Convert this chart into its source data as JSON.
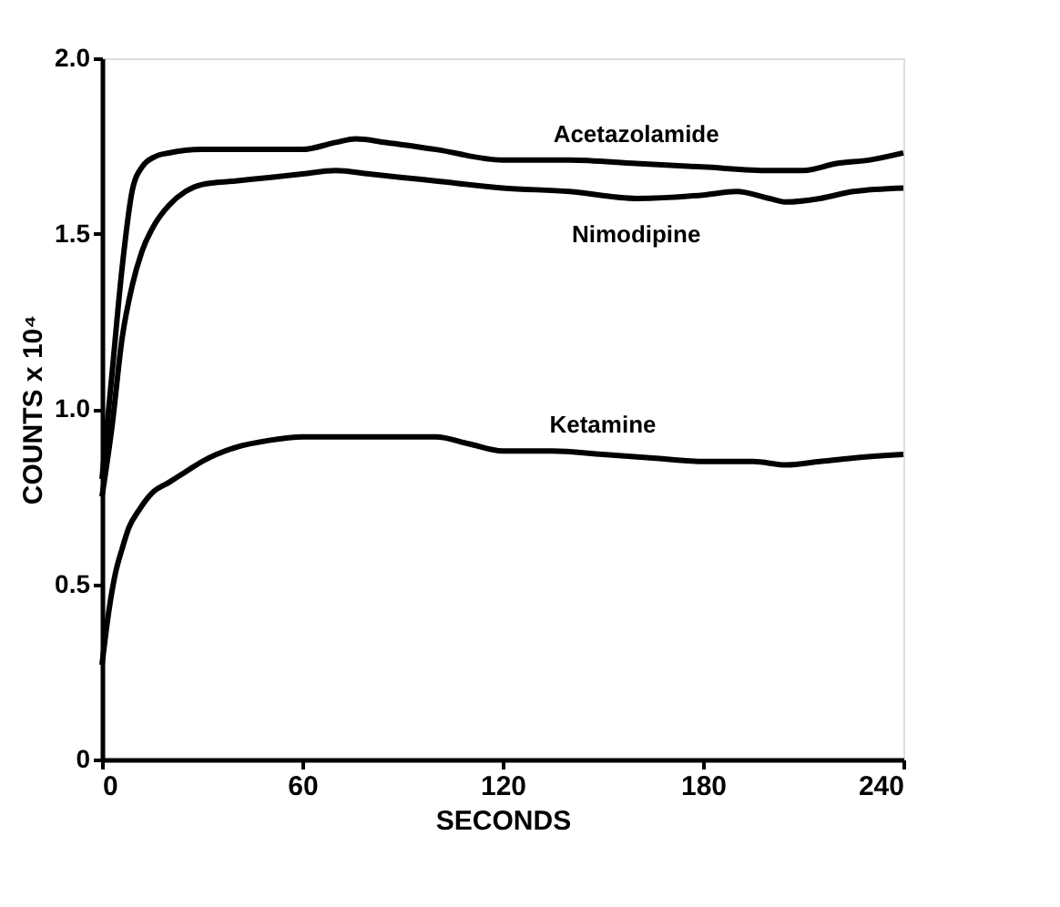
{
  "chart_data": {
    "type": "line",
    "xlabel": "SECONDS",
    "ylabel": "COUNTS x 10⁴",
    "xlim": [
      0,
      240
    ],
    "ylim": [
      0,
      2.0
    ],
    "xticks": [
      0,
      60,
      120,
      180,
      240
    ],
    "yticks": [
      0,
      {
        "value": 0.5,
        "label": "0.5"
      },
      {
        "value": 1.0,
        "label": "1.0"
      },
      1.5,
      {
        "value": 2.0,
        "label": "2.0"
      }
    ],
    "grid": false,
    "marker": "none",
    "line_style": "solid",
    "series": [
      {
        "name": "Acetazolamide",
        "color": "#000000",
        "x": [
          0,
          3,
          6,
          9,
          12,
          16,
          20,
          30,
          40,
          50,
          60,
          70,
          76,
          85,
          100,
          120,
          140,
          160,
          180,
          200,
          210,
          220,
          230,
          240
        ],
        "values": [
          0.8,
          1.1,
          1.4,
          1.62,
          1.69,
          1.72,
          1.73,
          1.74,
          1.74,
          1.74,
          1.74,
          1.76,
          1.77,
          1.76,
          1.74,
          1.71,
          1.71,
          1.7,
          1.69,
          1.68,
          1.68,
          1.7,
          1.71,
          1.73
        ]
      },
      {
        "name": "Nimodipine",
        "color": "#000000",
        "x": [
          0,
          3,
          6,
          9,
          12,
          16,
          20,
          25,
          30,
          40,
          50,
          60,
          70,
          80,
          90,
          100,
          120,
          140,
          160,
          180,
          190,
          200,
          205,
          215,
          225,
          240
        ],
        "values": [
          0.75,
          0.95,
          1.2,
          1.35,
          1.45,
          1.53,
          1.58,
          1.62,
          1.64,
          1.65,
          1.66,
          1.67,
          1.68,
          1.67,
          1.66,
          1.65,
          1.63,
          1.62,
          1.6,
          1.61,
          1.62,
          1.6,
          1.59,
          1.6,
          1.62,
          1.63
        ]
      },
      {
        "name": "Ketamine",
        "color": "#000000",
        "x": [
          0,
          2,
          4,
          6,
          8,
          11,
          15,
          20,
          25,
          30,
          40,
          50,
          60,
          70,
          80,
          90,
          100,
          110,
          120,
          135,
          150,
          165,
          180,
          195,
          205,
          215,
          225,
          240
        ],
        "values": [
          0.27,
          0.42,
          0.53,
          0.6,
          0.66,
          0.71,
          0.76,
          0.79,
          0.82,
          0.85,
          0.89,
          0.91,
          0.92,
          0.92,
          0.92,
          0.92,
          0.92,
          0.9,
          0.88,
          0.88,
          0.87,
          0.86,
          0.85,
          0.85,
          0.84,
          0.85,
          0.86,
          0.87
        ]
      }
    ]
  }
}
